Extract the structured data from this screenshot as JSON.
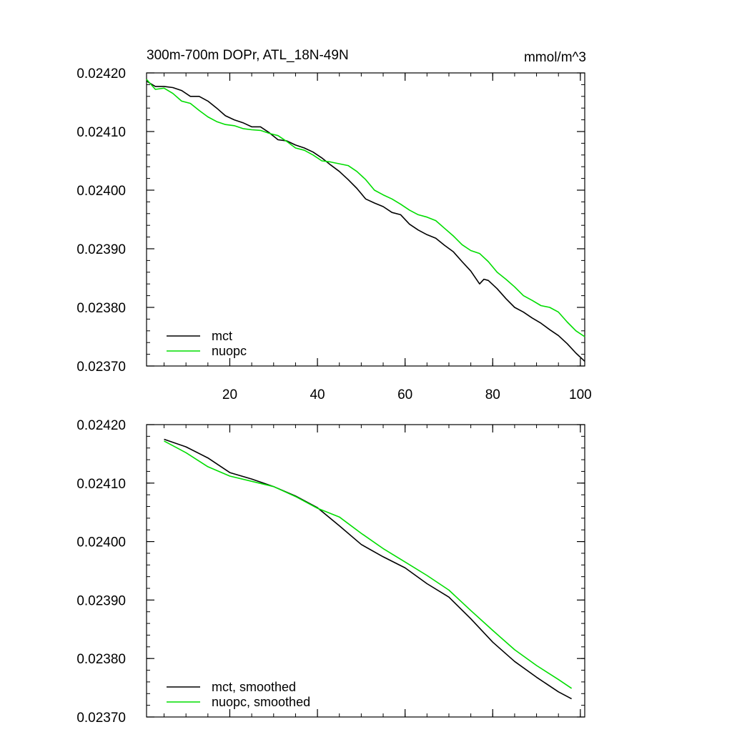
{
  "chart_data": [
    {
      "type": "line",
      "title": "300m-700m DOPr, ATL_18N-49N",
      "units": "mmol/m^3",
      "xlim": [
        1,
        101
      ],
      "ylim": [
        0.0237,
        0.0242
      ],
      "x_ticks": [
        20,
        40,
        60,
        80,
        100
      ],
      "y_ticks": [
        0.0242,
        0.0241,
        0.024,
        0.0239,
        0.0238,
        0.0237
      ],
      "x_tick_labels": [
        "20",
        "40",
        "60",
        "80",
        "100"
      ],
      "y_tick_labels": [
        "0.02420",
        "0.02410",
        "0.02400",
        "0.02390",
        "0.02380",
        "0.02370"
      ],
      "legend": {
        "placement": "bottom-left",
        "entries": [
          "mct",
          "nuopc"
        ]
      },
      "series": [
        {
          "name": "mct",
          "color": "#000000",
          "x": [
            1,
            3,
            5,
            7,
            9,
            11,
            13,
            15,
            17,
            19,
            21,
            23,
            25,
            27,
            29,
            31,
            33,
            35,
            37,
            39,
            41,
            43,
            45,
            47,
            49,
            51,
            53,
            55,
            57,
            59,
            61,
            63,
            65,
            67,
            69,
            71,
            73,
            75,
            77,
            78,
            79,
            81,
            83,
            85,
            87,
            89,
            91,
            93,
            95,
            97,
            99,
            101
          ],
          "values": [
            0.024186,
            0.024177,
            0.024177,
            0.024175,
            0.02417,
            0.02416,
            0.02416,
            0.024152,
            0.02414,
            0.024127,
            0.02412,
            0.024115,
            0.024108,
            0.024108,
            0.024098,
            0.024086,
            0.024084,
            0.024077,
            0.024072,
            0.024065,
            0.024055,
            0.024043,
            0.024032,
            0.024018,
            0.024003,
            0.023985,
            0.023978,
            0.023972,
            0.023962,
            0.023958,
            0.023942,
            0.023932,
            0.023924,
            0.023918,
            0.023906,
            0.023895,
            0.023878,
            0.023862,
            0.02384,
            0.023848,
            0.023846,
            0.023832,
            0.023815,
            0.0238,
            0.023792,
            0.023782,
            0.023773,
            0.023762,
            0.023752,
            0.023738,
            0.023722,
            0.023708
          ]
        },
        {
          "name": "nuopc",
          "color": "#00dd00",
          "x": [
            1,
            3,
            5,
            7,
            9,
            11,
            13,
            15,
            17,
            19,
            21,
            23,
            25,
            27,
            29,
            31,
            33,
            35,
            37,
            39,
            41,
            43,
            45,
            47,
            49,
            51,
            53,
            55,
            57,
            59,
            61,
            63,
            65,
            67,
            69,
            71,
            73,
            75,
            77,
            79,
            81,
            83,
            85,
            87,
            89,
            91,
            93,
            95,
            97,
            99,
            101
          ],
          "values": [
            0.024189,
            0.024172,
            0.024174,
            0.024165,
            0.024152,
            0.024148,
            0.024136,
            0.024125,
            0.024117,
            0.024112,
            0.02411,
            0.024105,
            0.024103,
            0.024102,
            0.024097,
            0.024093,
            0.024083,
            0.024072,
            0.024068,
            0.02406,
            0.02405,
            0.024048,
            0.024045,
            0.024042,
            0.024032,
            0.024018,
            0.024,
            0.023992,
            0.023985,
            0.023976,
            0.023966,
            0.023958,
            0.023954,
            0.023948,
            0.023935,
            0.023922,
            0.023907,
            0.023897,
            0.023892,
            0.023878,
            0.02386,
            0.023848,
            0.023835,
            0.02382,
            0.023812,
            0.023803,
            0.0238,
            0.023792,
            0.023775,
            0.02376,
            0.02375
          ]
        }
      ]
    },
    {
      "type": "line",
      "xlim": [
        1,
        101
      ],
      "ylim": [
        0.0237,
        0.0242
      ],
      "y_ticks": [
        0.0242,
        0.0241,
        0.024,
        0.0239,
        0.0238,
        0.0237
      ],
      "y_tick_labels": [
        "0.02420",
        "0.02410",
        "0.02400",
        "0.02390",
        "0.02380",
        "0.02370"
      ],
      "x_ticks": [
        20,
        40,
        60,
        80,
        100
      ],
      "legend": {
        "placement": "bottom-left",
        "entries": [
          "mct, smoothed",
          "nuopc, smoothed"
        ]
      },
      "series": [
        {
          "name": "mct, smoothed",
          "color": "#000000",
          "x": [
            5,
            10,
            15,
            20,
            25,
            30,
            35,
            40,
            45,
            50,
            55,
            60,
            65,
            70,
            75,
            80,
            85,
            90,
            95,
            98
          ],
          "values": [
            0.024175,
            0.024162,
            0.024143,
            0.024118,
            0.024107,
            0.024094,
            0.024078,
            0.024058,
            0.024027,
            0.023995,
            0.023974,
            0.023955,
            0.023928,
            0.023905,
            0.023868,
            0.023828,
            0.023795,
            0.023768,
            0.023743,
            0.023731
          ]
        },
        {
          "name": "nuopc, smoothed",
          "color": "#00dd00",
          "x": [
            5,
            10,
            15,
            20,
            25,
            30,
            35,
            40,
            45,
            50,
            55,
            60,
            65,
            70,
            75,
            80,
            85,
            90,
            95,
            98
          ],
          "values": [
            0.024172,
            0.024152,
            0.024128,
            0.024112,
            0.024103,
            0.024094,
            0.024077,
            0.024057,
            0.024042,
            0.024014,
            0.023988,
            0.023965,
            0.023942,
            0.023917,
            0.023882,
            0.023848,
            0.023815,
            0.023788,
            0.023764,
            0.023749
          ]
        }
      ]
    }
  ]
}
